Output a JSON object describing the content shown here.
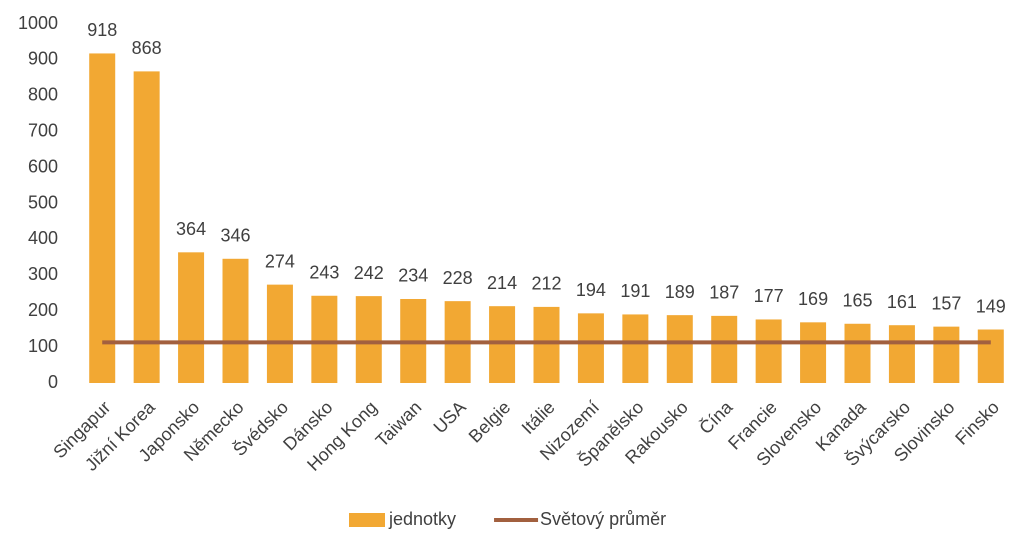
{
  "chart_data": {
    "type": "bar",
    "categories": [
      "Singapur",
      "Jižní Korea",
      "Japonsko",
      "Německo",
      "Švédsko",
      "Dánsko",
      "Hong Kong",
      "Taiwan",
      "USA",
      "Belgie",
      "Itálie",
      "Nizozemí",
      "Španělsko",
      "Rakousko",
      "Čína",
      "Francie",
      "Slovensko",
      "Kanada",
      "Švýcarsko",
      "Slovinsko",
      "Finsko"
    ],
    "series": [
      {
        "name": "jednotky",
        "type": "bar",
        "color": "#f2a833",
        "values": [
          918,
          868,
          364,
          346,
          274,
          243,
          242,
          234,
          228,
          214,
          212,
          194,
          191,
          189,
          187,
          177,
          169,
          165,
          161,
          157,
          149
        ]
      },
      {
        "name": "Světový průměr",
        "type": "line",
        "color": "#a2603f",
        "values": [
          113,
          113,
          113,
          113,
          113,
          113,
          113,
          113,
          113,
          113,
          113,
          113,
          113,
          113,
          113,
          113,
          113,
          113,
          113,
          113,
          113
        ]
      }
    ],
    "ylim": [
      0,
      1000
    ],
    "yticks": [
      0,
      100,
      200,
      300,
      400,
      500,
      600,
      700,
      800,
      900,
      1000
    ],
    "grid": false,
    "legend": "bottom"
  }
}
